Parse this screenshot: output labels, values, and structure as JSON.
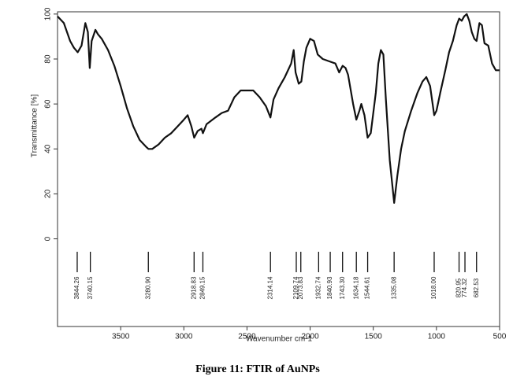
{
  "chart_data": {
    "type": "line",
    "caption": "Figure 11: FTIR of AuNPs",
    "x_label": "Wavenumber cm-1",
    "y_label": "Transmittance [%]",
    "xlim": [
      4000,
      500
    ],
    "ylim": [
      -39,
      101
    ],
    "xticks": [
      3500,
      3000,
      2500,
      2000,
      1500,
      1000,
      500
    ],
    "yticks": [
      0,
      20,
      40,
      60,
      80,
      100
    ],
    "color": "#111111",
    "peaks": [
      3844.26,
      3740.15,
      {
        "value": 3280.9,
        "label": "3280.90"
      },
      2918.83,
      2849.15,
      2314.14,
      2109.74,
      2073.83,
      1932.74,
      1840.93,
      {
        "value": 1743.3,
        "label": "1743.30"
      },
      1634.18,
      1544.61,
      1335.08,
      {
        "value": 1018,
        "label": "1018.00"
      },
      820.95,
      774.32,
      682.53
    ],
    "x": [
      4000,
      3950,
      3900,
      3870,
      3840,
      3810,
      3780,
      3760,
      3745,
      3730,
      3700,
      3680,
      3650,
      3600,
      3550,
      3500,
      3450,
      3400,
      3350,
      3300,
      3280,
      3250,
      3200,
      3150,
      3100,
      3050,
      3000,
      2970,
      2940,
      2918,
      2890,
      2860,
      2849,
      2820,
      2750,
      2700,
      2650,
      2600,
      2550,
      2500,
      2450,
      2400,
      2350,
      2314,
      2290,
      2250,
      2200,
      2150,
      2130,
      2115,
      2090,
      2070,
      2050,
      2030,
      2000,
      1970,
      1940,
      1900,
      1850,
      1800,
      1770,
      1743,
      1720,
      1700,
      1660,
      1634,
      1610,
      1595,
      1570,
      1545,
      1520,
      1480,
      1460,
      1440,
      1420,
      1400,
      1370,
      1335,
      1310,
      1280,
      1250,
      1200,
      1150,
      1110,
      1080,
      1050,
      1018,
      1000,
      970,
      930,
      900,
      870,
      840,
      820,
      800,
      780,
      760,
      740,
      720,
      700,
      682,
      660,
      640,
      620,
      590,
      560,
      530,
      500
    ],
    "values": [
      99,
      96,
      88,
      85,
      83,
      86,
      96,
      92,
      76,
      88,
      93,
      91,
      89,
      84,
      77,
      68,
      58,
      50,
      44,
      41,
      40,
      40,
      42,
      45,
      47,
      50,
      53,
      55,
      50,
      45,
      48,
      49,
      47,
      51,
      54,
      56,
      57,
      63,
      66,
      66,
      66,
      63,
      59,
      54,
      62,
      67,
      72,
      78,
      84,
      74,
      69,
      70,
      79,
      85,
      89,
      88,
      82,
      80,
      79,
      78,
      74,
      77,
      76,
      73,
      60,
      53,
      57,
      60,
      55,
      45,
      47,
      65,
      78,
      84,
      82,
      62,
      35,
      16,
      28,
      40,
      48,
      57,
      65,
      70,
      72,
      68,
      55,
      57,
      65,
      75,
      83,
      88,
      95,
      98,
      97,
      99,
      100,
      97,
      92,
      89,
      88,
      96,
      95,
      87,
      86,
      78,
      75,
      75
    ]
  }
}
